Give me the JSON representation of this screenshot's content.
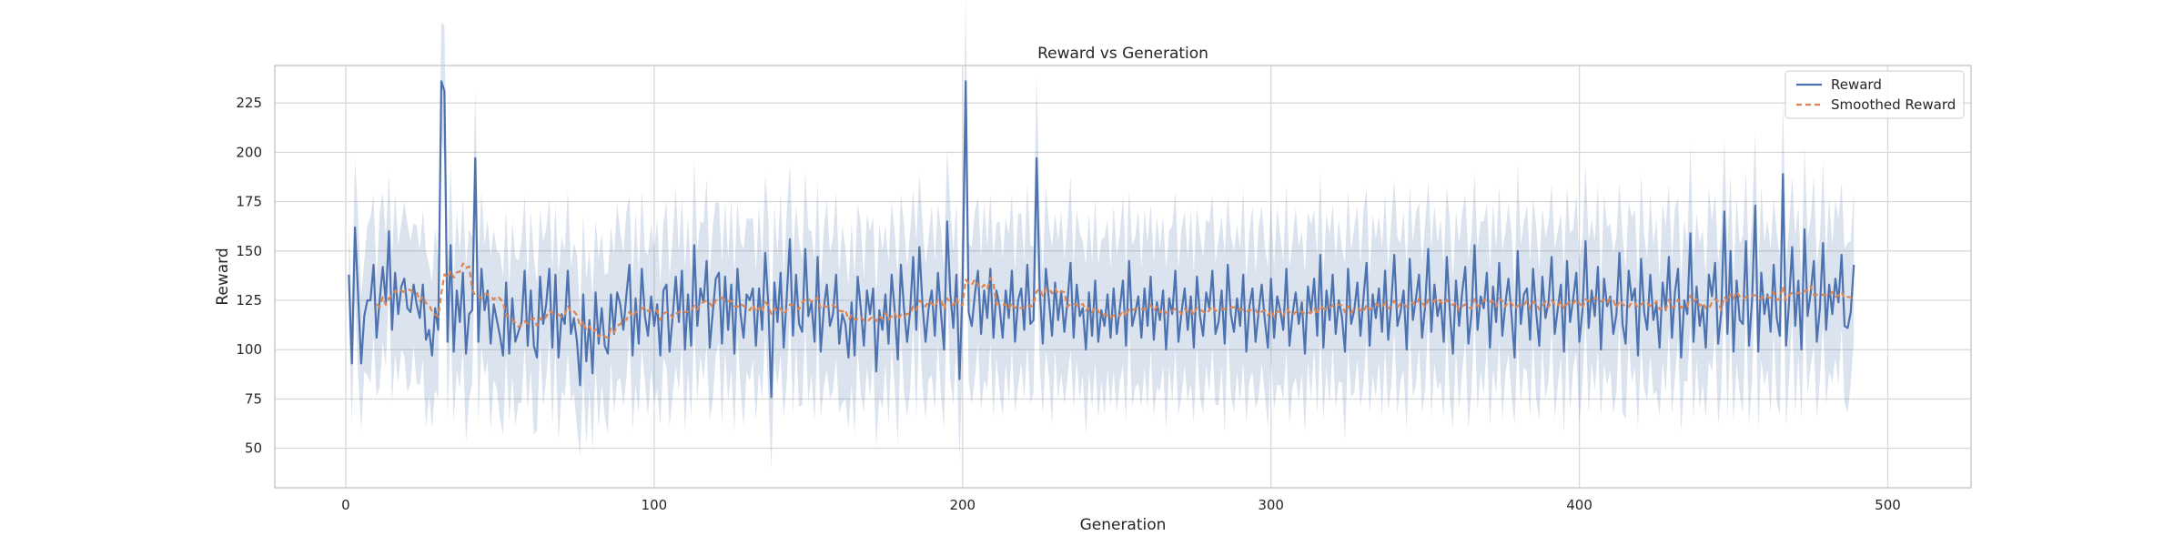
{
  "chart_data": {
    "type": "line",
    "title": "Reward vs Generation",
    "xlabel": "Generation",
    "ylabel": "Reward",
    "xlim": [
      -23,
      527
    ],
    "ylim": [
      30,
      244
    ],
    "xticks": [
      0,
      100,
      200,
      300,
      400,
      500
    ],
    "yticks": [
      50,
      75,
      100,
      125,
      150,
      175,
      200,
      225
    ],
    "grid": true,
    "legend": "top-right",
    "series": [
      {
        "name": "Reward",
        "style": "solid",
        "color": "#4c72b0",
        "band_color": "#4c72b0",
        "x_start": 1,
        "x_step": 1,
        "values": [
          138,
          93,
          162,
          128,
          93,
          117,
          125,
          125,
          143,
          106,
          125,
          142,
          124,
          160,
          110,
          139,
          118,
          132,
          136,
          121,
          119,
          133,
          123,
          116,
          133,
          105,
          110,
          97,
          121,
          110,
          236,
          231,
          104,
          153,
          99,
          130,
          114,
          139,
          98,
          118,
          120,
          197,
          104,
          141,
          120,
          130,
          103,
          123,
          115,
          107,
          97,
          134,
          98,
          126,
          104,
          109,
          114,
          140,
          102,
          130,
          102,
          96,
          137,
          113,
          123,
          141,
          101,
          138,
          96,
          118,
          113,
          140,
          108,
          116,
          104,
          82,
          128,
          94,
          115,
          88,
          129,
          103,
          121,
          102,
          98,
          128,
          108,
          129,
          123,
          110,
          128,
          143,
          97,
          126,
          103,
          141,
          117,
          107,
          127,
          112,
          123,
          97,
          130,
          133,
          99,
          117,
          137,
          114,
          140,
          100,
          128,
          102,
          153,
          112,
          131,
          124,
          145,
          101,
          119,
          136,
          139,
          103,
          137,
          110,
          133,
          98,
          141,
          118,
          106,
          128,
          125,
          131,
          102,
          131,
          110,
          149,
          123,
          76,
          134,
          114,
          139,
          101,
          127,
          156,
          107,
          138,
          113,
          109,
          151,
          117,
          124,
          104,
          147,
          99,
          121,
          133,
          112,
          118,
          138,
          103,
          118,
          113,
          96,
          124,
          97,
          137,
          121,
          102,
          130,
          118,
          131,
          89,
          120,
          110,
          128,
          103,
          138,
          120,
          95,
          143,
          121,
          104,
          120,
          147,
          110,
          152,
          123,
          104,
          121,
          130,
          107,
          139,
          119,
          100,
          165,
          129,
          111,
          138,
          85,
          133,
          236,
          119,
          112,
          128,
          140,
          108,
          130,
          116,
          141,
          106,
          130,
          122,
          106,
          130,
          116,
          140,
          104,
          125,
          131,
          110,
          143,
          113,
          115,
          197,
          131,
          103,
          141,
          125,
          107,
          134,
          115,
          129,
          109,
          124,
          144,
          106,
          133,
          117,
          121,
          100,
          129,
          107,
          135,
          104,
          120,
          112,
          128,
          106,
          131,
          108,
          121,
          135,
          102,
          145,
          112,
          119,
          127,
          106,
          131,
          112,
          137,
          105,
          124,
          115,
          130,
          100,
          126,
          118,
          140,
          104,
          119,
          131,
          110,
          127,
          101,
          137,
          117,
          107,
          129,
          121,
          140,
          108,
          114,
          130,
          103,
          143,
          118,
          109,
          126,
          112,
          138,
          99,
          122,
          131,
          104,
          119,
          133,
          115,
          101,
          136,
          106,
          127,
          120,
          110,
          141,
          102,
          118,
          129,
          113,
          124,
          98,
          132,
          119,
          136,
          107,
          148,
          101,
          130,
          115,
          138,
          108,
          125,
          117,
          99,
          141,
          113,
          120,
          134,
          107,
          126,
          144,
          102,
          128,
          116,
          131,
          109,
          140,
          105,
          124,
          148,
          112,
          119,
          130,
          100,
          146,
          115,
          126,
          138,
          106,
          122,
          151,
          109,
          133,
          117,
          125,
          104,
          147,
          120,
          98,
          135,
          112,
          129,
          142,
          103,
          118,
          153,
          110,
          127,
          121,
          139,
          101,
          132,
          114,
          144,
          107,
          123,
          136,
          118,
          96,
          150,
          113,
          128,
          131,
          105,
          141,
          119,
          102,
          137,
          116,
          124,
          147,
          108,
          121,
          133,
          99,
          145,
          114,
          126,
          139,
          104,
          120,
          155,
          111,
          130,
          117,
          142,
          100,
          136,
          122,
          127,
          108,
          118,
          149,
          113,
          103,
          140,
          125,
          131,
          97,
          146,
          119,
          110,
          138,
          115,
          123,
          101,
          134,
          120,
          147,
          106,
          129,
          141,
          96,
          125,
          118,
          159,
          104,
          132,
          112,
          122,
          101,
          138,
          127,
          144,
          103,
          119,
          170,
          108,
          150,
          99,
          135,
          115,
          113,
          155,
          102,
          126,
          173,
          99,
          139,
          118,
          128,
          109,
          143,
          116,
          107,
          189,
          102,
          124,
          152,
          112,
          135,
          100,
          161,
          117,
          129,
          145,
          104,
          121,
          154,
          110,
          133,
          118,
          136,
          124,
          148,
          112,
          111,
          119,
          143
        ],
        "band_halfwidth": [
          25,
          30,
          35,
          40,
          34,
          28,
          38,
          42,
          36,
          30,
          44,
          38,
          33,
          29,
          37,
          41,
          35,
          32,
          39,
          43,
          36,
          31,
          40,
          34,
          38,
          45,
          33,
          37,
          41,
          35,
          30,
          33,
          39,
          42,
          36,
          40,
          34,
          38,
          45,
          43,
          37,
          35,
          41,
          39,
          33,
          36,
          44,
          38,
          35,
          42,
          40,
          37,
          34,
          39,
          43,
          36,
          41,
          38,
          33,
          40,
          45,
          37,
          34,
          42,
          38,
          36,
          40,
          35,
          43,
          39,
          37,
          41,
          34,
          38,
          44,
          36,
          40,
          42,
          35,
          39,
          37,
          43,
          38,
          36,
          41,
          34,
          40,
          45,
          37,
          39,
          42,
          35,
          38,
          44,
          36,
          40,
          33,
          41,
          37,
          39,
          43,
          36,
          34,
          42,
          38,
          40,
          45,
          35,
          37,
          41,
          39,
          36,
          43,
          38,
          34,
          40,
          42,
          37,
          44,
          39,
          35,
          41,
          38,
          36,
          43,
          40,
          34,
          37,
          45,
          39,
          41,
          36,
          38,
          42,
          35,
          40,
          44,
          37,
          39,
          33,
          41,
          36,
          43,
          38,
          40,
          35,
          42,
          37,
          39,
          44,
          36,
          41,
          38,
          34,
          40,
          43,
          37,
          39,
          42,
          35,
          45,
          38,
          36,
          41,
          40,
          37,
          43,
          34,
          39,
          42,
          36,
          38,
          44,
          40,
          35,
          41,
          37,
          39,
          43,
          36,
          42,
          38,
          40,
          34,
          45,
          37,
          41,
          39,
          36,
          43,
          38,
          35,
          42,
          40,
          37,
          44,
          39,
          36,
          41,
          38,
          43,
          35,
          40,
          42,
          37,
          39,
          45,
          36,
          38,
          41,
          34,
          43,
          40,
          37,
          42,
          39,
          36,
          44,
          38,
          35,
          41,
          40,
          37,
          43,
          39,
          36,
          42,
          38,
          45,
          35,
          40,
          41,
          37,
          39,
          44,
          36,
          38,
          42,
          34,
          43,
          40,
          37,
          41,
          39,
          36,
          45,
          38,
          35,
          42,
          40,
          37,
          43,
          39,
          36,
          41,
          38,
          44,
          35,
          40,
          42,
          37,
          39,
          43,
          36,
          38,
          41,
          34,
          45,
          40,
          37,
          42,
          39,
          36,
          44,
          38,
          35,
          41,
          40,
          37,
          43,
          39,
          36,
          42,
          38,
          45,
          35,
          40,
          41,
          37,
          39,
          44,
          36,
          38,
          42,
          34,
          43,
          40,
          37,
          41,
          39,
          36,
          45,
          38,
          35,
          42,
          40,
          37,
          43,
          39,
          36,
          41,
          38,
          44,
          35,
          40,
          42,
          37,
          39,
          43,
          36,
          38,
          41,
          34,
          45,
          40,
          37,
          42,
          39,
          36,
          44,
          38,
          35,
          41,
          40,
          37,
          43,
          39,
          36,
          42,
          38,
          45,
          35,
          40,
          41,
          37,
          39,
          44,
          36,
          38,
          42,
          34,
          43,
          40,
          37,
          41,
          39,
          36,
          45,
          38,
          35,
          42,
          40,
          37,
          43,
          39,
          36,
          41,
          38,
          44,
          35,
          40,
          42,
          37,
          39,
          43,
          36,
          38,
          41,
          34,
          45,
          40,
          37,
          42,
          39,
          36,
          44,
          38,
          35,
          41,
          40,
          37,
          43,
          39,
          36,
          42,
          38,
          45,
          35,
          40,
          41,
          37,
          39,
          44,
          36,
          38,
          42,
          34,
          43,
          40,
          37,
          41,
          39,
          36,
          45,
          38,
          35,
          42,
          40,
          37,
          43,
          39,
          36,
          41,
          38,
          44,
          35,
          40,
          42,
          37,
          39,
          43,
          36,
          38,
          41,
          34,
          45,
          40,
          37,
          42,
          39,
          36,
          44,
          38,
          35,
          41,
          40,
          37,
          43,
          39,
          36,
          42,
          38,
          45,
          35,
          40,
          41,
          37,
          39,
          44,
          36,
          38,
          42,
          34,
          43,
          40,
          37,
          41,
          39,
          36,
          45,
          38,
          35,
          42,
          40,
          37,
          43,
          39,
          36,
          41,
          38,
          44,
          35,
          40,
          42,
          37,
          39,
          43,
          36,
          38,
          41,
          34,
          45,
          40,
          37,
          42,
          39,
          36,
          44,
          38,
          35,
          41,
          40,
          37,
          43,
          39,
          36,
          42,
          38,
          45,
          35,
          40,
          41,
          37,
          39,
          44,
          36,
          38,
          42,
          34,
          43,
          40,
          37,
          41,
          39,
          36,
          45,
          38,
          35,
          42,
          40,
          37,
          43,
          39,
          36,
          41,
          38,
          44,
          35,
          40,
          42,
          37,
          39,
          43,
          36,
          38,
          41,
          34
        ]
      },
      {
        "name": "Smoothed Reward",
        "style": "dashed",
        "color": "#dd8452",
        "smoothing_window": 10
      }
    ]
  }
}
